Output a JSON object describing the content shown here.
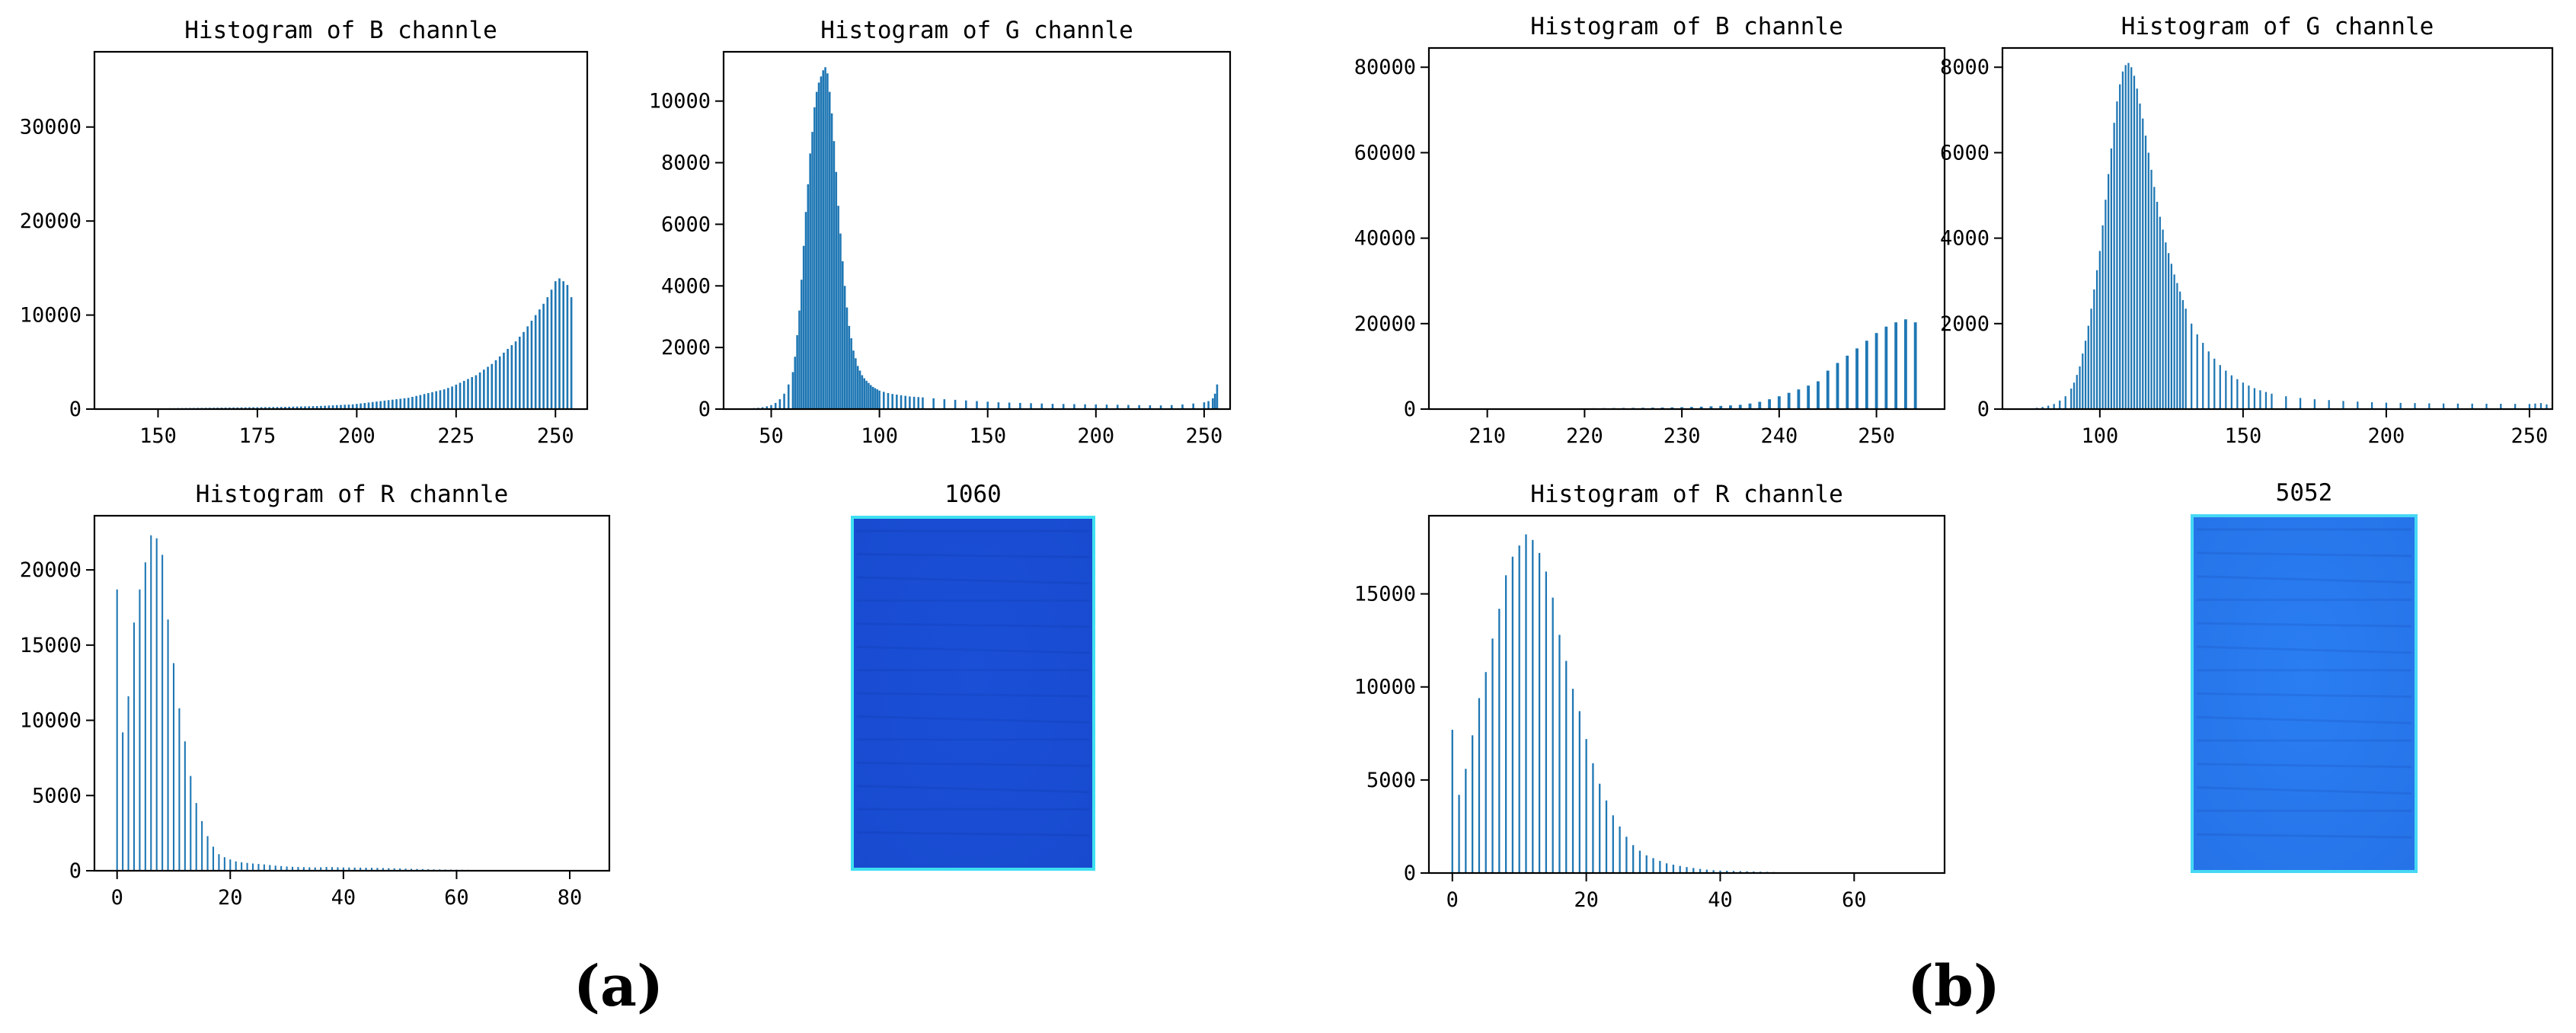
{
  "panel_labels": [
    "(a)",
    "(b)"
  ],
  "chart_data": [
    {
      "type": "bar",
      "title": "Histogram of B channle",
      "xlabel": "",
      "ylabel": "",
      "xlim": [
        134,
        258
      ],
      "ylim": [
        0,
        38000
      ],
      "xticks": [
        150,
        175,
        200,
        225,
        250
      ],
      "yticks": [
        0,
        10000,
        20000,
        30000
      ],
      "bar_width": 0.5,
      "color": "#1f77b4",
      "x": [
        147,
        148,
        149,
        150,
        151,
        152,
        153,
        154,
        155,
        156,
        157,
        158,
        159,
        160,
        161,
        162,
        163,
        164,
        165,
        166,
        167,
        168,
        169,
        170,
        171,
        172,
        173,
        174,
        175,
        176,
        177,
        178,
        179,
        180,
        181,
        182,
        183,
        184,
        185,
        186,
        187,
        188,
        189,
        190,
        191,
        192,
        193,
        194,
        195,
        196,
        197,
        198,
        199,
        200,
        201,
        202,
        203,
        204,
        205,
        206,
        207,
        208,
        209,
        210,
        211,
        212,
        213,
        214,
        215,
        216,
        217,
        218,
        219,
        220,
        221,
        222,
        223,
        224,
        225,
        226,
        227,
        228,
        229,
        230,
        231,
        232,
        233,
        234,
        235,
        236,
        237,
        238,
        239,
        240,
        241,
        242,
        243,
        244,
        245,
        246,
        247,
        248,
        249,
        250,
        251,
        252,
        253,
        254
      ],
      "values": [
        60,
        65,
        70,
        75,
        80,
        85,
        90,
        95,
        100,
        105,
        110,
        115,
        120,
        125,
        130,
        135,
        140,
        145,
        150,
        155,
        160,
        165,
        170,
        175,
        180,
        185,
        190,
        195,
        200,
        205,
        210,
        215,
        220,
        225,
        230,
        240,
        250,
        260,
        270,
        280,
        290,
        300,
        310,
        320,
        340,
        360,
        380,
        400,
        420,
        440,
        460,
        480,
        500,
        550,
        600,
        650,
        700,
        750,
        800,
        850,
        900,
        950,
        1000,
        1050,
        1100,
        1150,
        1200,
        1300,
        1400,
        1500,
        1600,
        1700,
        1800,
        1900,
        2000,
        2100,
        2250,
        2400,
        2600,
        2800,
        3000,
        3200,
        3400,
        3600,
        3900,
        4200,
        4500,
        4800,
        5200,
        5600,
        6000,
        6400,
        6800,
        7200,
        7700,
        8200,
        8800,
        9400,
        10000,
        10600,
        11200,
        11900,
        12700,
        13600,
        13900,
        13600,
        13200,
        11900
      ]
    },
    {
      "type": "bar",
      "title": "Histogram of G channle",
      "xlabel": "",
      "ylabel": "",
      "xlim": [
        28,
        262
      ],
      "ylim": [
        0,
        11600
      ],
      "xticks": [
        50,
        100,
        150,
        200,
        250
      ],
      "yticks": [
        0,
        2000,
        4000,
        6000,
        8000,
        10000
      ],
      "bar_width": 0.9,
      "color": "#1f77b4",
      "x": [
        40,
        42,
        44,
        46,
        48,
        50,
        52,
        54,
        56,
        58,
        60,
        61,
        62,
        63,
        64,
        65,
        66,
        67,
        68,
        69,
        70,
        71,
        72,
        73,
        74,
        75,
        76,
        77,
        78,
        79,
        80,
        81,
        82,
        83,
        84,
        85,
        86,
        87,
        88,
        89,
        90,
        91,
        92,
        93,
        94,
        95,
        96,
        97,
        98,
        99,
        100,
        102,
        104,
        106,
        108,
        110,
        112,
        114,
        116,
        118,
        120,
        125,
        130,
        135,
        140,
        145,
        150,
        155,
        160,
        165,
        170,
        175,
        180,
        185,
        190,
        195,
        200,
        205,
        210,
        215,
        220,
        225,
        230,
        235,
        240,
        245,
        250,
        252,
        254,
        255,
        256
      ],
      "values": [
        20,
        30,
        40,
        60,
        90,
        130,
        200,
        320,
        500,
        800,
        1200,
        1700,
        2400,
        3200,
        4200,
        5300,
        6400,
        7300,
        8300,
        9000,
        9800,
        10300,
        10600,
        10800,
        11000,
        11100,
        10900,
        10300,
        9600,
        8700,
        7700,
        6600,
        5700,
        4800,
        4000,
        3300,
        2700,
        2300,
        1900,
        1650,
        1400,
        1250,
        1100,
        1000,
        920,
        850,
        780,
        720,
        680,
        640,
        600,
        560,
        520,
        490,
        470,
        450,
        430,
        410,
        400,
        390,
        380,
        350,
        320,
        300,
        280,
        260,
        240,
        220,
        210,
        200,
        190,
        180,
        170,
        165,
        160,
        155,
        150,
        145,
        140,
        135,
        130,
        125,
        120,
        130,
        150,
        180,
        220,
        260,
        350,
        500,
        800
      ]
    },
    {
      "type": "bar",
      "title": "Histogram of R channle",
      "xlabel": "",
      "ylabel": "",
      "xlim": [
        -4,
        87
      ],
      "ylim": [
        0,
        23600
      ],
      "xticks": [
        0,
        20,
        40,
        60,
        80
      ],
      "yticks": [
        0,
        5000,
        10000,
        15000,
        20000
      ],
      "bar_width": 0.28,
      "color": "#1f77b4",
      "x": [
        0,
        1,
        2,
        3,
        4,
        5,
        6,
        7,
        8,
        9,
        10,
        11,
        12,
        13,
        14,
        15,
        16,
        17,
        18,
        19,
        20,
        21,
        22,
        23,
        24,
        25,
        26,
        27,
        28,
        29,
        30,
        31,
        32,
        33,
        34,
        35,
        36,
        37,
        38,
        39,
        40,
        41,
        42,
        43,
        44,
        45,
        46,
        47,
        48,
        49,
        50,
        51,
        52,
        53,
        54,
        55,
        56,
        57,
        58,
        59,
        60,
        61,
        62,
        63,
        64,
        65
      ],
      "values": [
        18700,
        9200,
        11600,
        16500,
        18700,
        20500,
        22300,
        22100,
        21000,
        16700,
        13800,
        10800,
        8600,
        6300,
        4500,
        3300,
        2300,
        1600,
        1100,
        900,
        750,
        620,
        560,
        520,
        480,
        450,
        420,
        380,
        340,
        310,
        280,
        260,
        250,
        240,
        230,
        220,
        230,
        250,
        240,
        230,
        220,
        215,
        210,
        205,
        200,
        195,
        190,
        180,
        170,
        160,
        150,
        140,
        130,
        120,
        110,
        100,
        90,
        85,
        80,
        75,
        70,
        65,
        60,
        50,
        40,
        30
      ]
    },
    {
      "type": "bar",
      "title": "Histogram of B channle",
      "xlabel": "",
      "ylabel": "",
      "xlim": [
        204,
        257
      ],
      "ylim": [
        0,
        84500
      ],
      "xticks": [
        210,
        220,
        230,
        240,
        250
      ],
      "yticks": [
        0,
        20000,
        40000,
        60000,
        80000
      ],
      "bar_width": 0.3,
      "color": "#1f77b4",
      "x": [
        207,
        209,
        211,
        213,
        215,
        217,
        219,
        220,
        221,
        222,
        223,
        224,
        225,
        226,
        227,
        228,
        229,
        230,
        231,
        232,
        233,
        234,
        235,
        236,
        237,
        238,
        239,
        240,
        241,
        242,
        243,
        244,
        245,
        246,
        247,
        248,
        249,
        250,
        251,
        252,
        253,
        254
      ],
      "values": [
        80,
        90,
        100,
        110,
        120,
        140,
        160,
        180,
        200,
        220,
        240,
        260,
        280,
        300,
        330,
        360,
        400,
        450,
        500,
        560,
        640,
        740,
        860,
        1000,
        1300,
        1700,
        2300,
        3000,
        3800,
        4600,
        5500,
        6500,
        9000,
        10800,
        12500,
        14200,
        16000,
        17800,
        19300,
        20300,
        21000,
        20300
      ]
    },
    {
      "type": "bar",
      "title": "Histogram of G channle",
      "xlabel": "",
      "ylabel": "",
      "xlim": [
        66,
        258
      ],
      "ylim": [
        0,
        8450
      ],
      "xticks": [
        100,
        150,
        200,
        250
      ],
      "yticks": [
        0,
        2000,
        4000,
        6000,
        8000
      ],
      "bar_width": 0.6,
      "color": "#1f77b4",
      "x": [
        78,
        80,
        82,
        84,
        86,
        88,
        90,
        91,
        92,
        93,
        94,
        95,
        96,
        97,
        98,
        99,
        100,
        101,
        102,
        103,
        104,
        105,
        106,
        107,
        108,
        109,
        110,
        111,
        112,
        113,
        114,
        115,
        116,
        117,
        118,
        119,
        120,
        121,
        122,
        123,
        124,
        125,
        126,
        127,
        128,
        129,
        130,
        132,
        134,
        136,
        138,
        140,
        142,
        144,
        146,
        148,
        150,
        152,
        154,
        156,
        158,
        160,
        165,
        170,
        175,
        180,
        185,
        190,
        195,
        200,
        205,
        210,
        215,
        220,
        225,
        230,
        235,
        240,
        245,
        250,
        252,
        254,
        256
      ],
      "values": [
        30,
        50,
        80,
        120,
        200,
        300,
        480,
        620,
        800,
        1000,
        1300,
        1600,
        1950,
        2350,
        2800,
        3250,
        3700,
        4300,
        4900,
        5500,
        6100,
        6700,
        7200,
        7600,
        7900,
        8050,
        8100,
        8000,
        7800,
        7500,
        7150,
        6800,
        6400,
        6000,
        5600,
        5200,
        4850,
        4500,
        4200,
        3900,
        3650,
        3400,
        3150,
        2950,
        2750,
        2550,
        2350,
        2000,
        1750,
        1550,
        1350,
        1180,
        1030,
        900,
        790,
        700,
        620,
        550,
        490,
        440,
        400,
        360,
        300,
        260,
        230,
        210,
        190,
        175,
        160,
        150,
        145,
        140,
        135,
        130,
        128,
        126,
        125,
        124,
        122,
        120,
        130,
        140,
        110
      ]
    },
    {
      "type": "bar",
      "title": "Histogram of R channle",
      "xlabel": "",
      "ylabel": "",
      "xlim": [
        -3.5,
        73.5
      ],
      "ylim": [
        0,
        19200
      ],
      "xticks": [
        0,
        20,
        40,
        60
      ],
      "yticks": [
        0,
        5000,
        10000,
        15000
      ],
      "bar_width": 0.26,
      "color": "#1f77b4",
      "x": [
        0,
        1,
        2,
        3,
        4,
        5,
        6,
        7,
        8,
        9,
        10,
        11,
        12,
        13,
        14,
        15,
        16,
        17,
        18,
        19,
        20,
        21,
        22,
        23,
        24,
        25,
        26,
        27,
        28,
        29,
        30,
        31,
        32,
        33,
        34,
        35,
        36,
        37,
        38,
        39,
        40,
        41,
        42,
        43,
        44,
        45,
        46,
        47,
        48,
        49,
        50
      ],
      "values": [
        7700,
        4200,
        5600,
        7400,
        9400,
        10800,
        12600,
        14200,
        16000,
        17000,
        17600,
        18200,
        17900,
        17200,
        16200,
        14800,
        12800,
        11400,
        9900,
        8700,
        7200,
        5900,
        4800,
        3900,
        3100,
        2500,
        1950,
        1500,
        1200,
        950,
        800,
        650,
        520,
        450,
        380,
        320,
        270,
        220,
        180,
        150,
        130,
        120,
        110,
        100,
        90,
        80,
        70,
        60,
        50,
        40,
        30
      ]
    }
  ],
  "images": [
    {
      "title": "1060",
      "base_color": "#1a4fd6",
      "edge_color": "#3ee0f0"
    },
    {
      "title": "5052",
      "base_color": "#2a7ef2",
      "edge_color": "#46d8f4"
    }
  ]
}
